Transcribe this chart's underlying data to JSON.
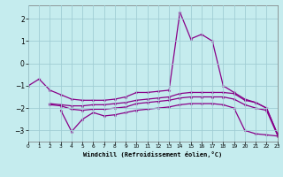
{
  "xlabel": "Windchill (Refroidissement éolien,°C)",
  "background_color": "#c5ecee",
  "grid_color": "#a0cdd4",
  "line_color": "#880088",
  "xlim": [
    0,
    23
  ],
  "ylim": [
    -3.5,
    2.6
  ],
  "yticks": [
    -3,
    -2,
    -1,
    0,
    1,
    2
  ],
  "xticks": [
    0,
    1,
    2,
    3,
    4,
    5,
    6,
    7,
    8,
    9,
    10,
    11,
    12,
    13,
    14,
    15,
    16,
    17,
    18,
    19,
    20,
    21,
    22,
    23
  ],
  "lines": [
    {
      "x": [
        0,
        1,
        2,
        3,
        4,
        5,
        6,
        7,
        8,
        9,
        10,
        11,
        12,
        13,
        14,
        15,
        16,
        17,
        18,
        19,
        20,
        21,
        22,
        23
      ],
      "y": [
        -1.0,
        -0.7,
        -1.2,
        -1.4,
        -1.6,
        -1.65,
        -1.65,
        -1.65,
        -1.6,
        -1.5,
        -1.3,
        -1.3,
        -1.25,
        -1.2,
        2.3,
        1.1,
        1.3,
        1.0,
        -1.0,
        -1.3,
        -1.6,
        -1.75,
        -2.0,
        -3.15
      ]
    },
    {
      "x": [
        2,
        3,
        4,
        5,
        6,
        7,
        8,
        9,
        10,
        11,
        12,
        13,
        14,
        15,
        16,
        17,
        18,
        19,
        20,
        21,
        22,
        23
      ],
      "y": [
        -1.8,
        -1.85,
        -1.9,
        -1.9,
        -1.85,
        -1.85,
        -1.8,
        -1.75,
        -1.65,
        -1.6,
        -1.55,
        -1.5,
        -1.35,
        -1.3,
        -1.3,
        -1.3,
        -1.3,
        -1.35,
        -1.65,
        -1.75,
        -2.0,
        -3.15
      ]
    },
    {
      "x": [
        2,
        3,
        4,
        5,
        6,
        7,
        8,
        9,
        10,
        11,
        12,
        13,
        14,
        15,
        16,
        17,
        18,
        19,
        20,
        21,
        22,
        23
      ],
      "y": [
        -1.85,
        -1.9,
        -2.05,
        -2.1,
        -2.05,
        -2.05,
        -2.0,
        -1.95,
        -1.8,
        -1.75,
        -1.7,
        -1.65,
        -1.55,
        -1.5,
        -1.5,
        -1.5,
        -1.5,
        -1.6,
        -1.85,
        -2.0,
        -2.1,
        -3.2
      ]
    },
    {
      "x": [
        3,
        4,
        5,
        6,
        7,
        8,
        9,
        10,
        11,
        12,
        13,
        14,
        15,
        16,
        17,
        18,
        19,
        20,
        21,
        22,
        23
      ],
      "y": [
        -2.1,
        -3.05,
        -2.5,
        -2.2,
        -2.35,
        -2.3,
        -2.2,
        -2.1,
        -2.05,
        -2.0,
        -1.95,
        -1.85,
        -1.8,
        -1.8,
        -1.8,
        -1.85,
        -2.0,
        -3.0,
        -3.15,
        -3.2,
        -3.25
      ]
    }
  ]
}
